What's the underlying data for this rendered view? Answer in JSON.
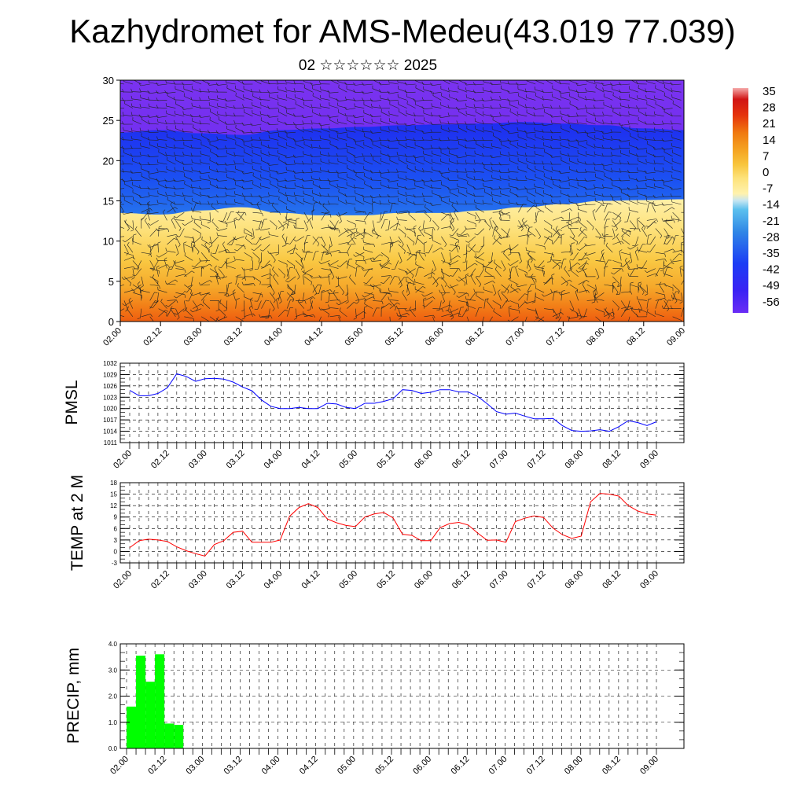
{
  "header": {
    "title": "Kazhydromet for AMS-Medeu(43.019 77.039)",
    "subtitle": "02 ☆☆☆☆☆☆ 2025"
  },
  "colors": {
    "pmsl_line": "#0000ff",
    "temp_line": "#ff0000",
    "precip_bar": "#00ff00",
    "colormap": [
      "#7a2cf2",
      "#3a22f4",
      "#1c3df5",
      "#2f86e6",
      "#5cc0ee",
      "#c7e6f2",
      "#fff2ae",
      "#fde27a",
      "#f8c53c",
      "#f5a623",
      "#f07a10",
      "#e5320c",
      "#d11414",
      "#f5aaaa"
    ]
  },
  "chart_data": [
    {
      "type": "heatmap",
      "name": "cross-section",
      "ylim": [
        0,
        30
      ],
      "yticks": [
        "0",
        "5",
        "10",
        "15",
        "20",
        "25",
        "30"
      ],
      "xticks": [
        "02.00",
        "02.12",
        "03.00",
        "03.12",
        "04.00",
        "04.12",
        "05.00",
        "05.12",
        "06.00",
        "06.12",
        "07.00",
        "07.12",
        "08.00",
        "08.12",
        "09.00"
      ],
      "colorbar_labels": [
        "35",
        "28",
        "21",
        "14",
        "7",
        "0",
        "-7",
        "-14",
        "-21",
        "-28",
        "-35",
        "-42",
        "-49",
        "-56"
      ],
      "colorbar_range": [
        -60,
        38
      ],
      "level_boundary": {
        "x": [
          0,
          0.5,
          1,
          1.5,
          2,
          2.5,
          3,
          3.5,
          4,
          4.5,
          5,
          5.5,
          6,
          6.5,
          7
        ],
        "upper_cold_band": [
          23.5,
          23.8,
          23.4,
          23.2,
          23.8,
          24.0,
          24.2,
          24.4,
          24.5,
          24.6,
          24.8,
          24.6,
          24.4,
          24.0,
          23.8
        ],
        "freezing_level": [
          13.5,
          13.3,
          13.8,
          14.2,
          13.5,
          13.2,
          13.2,
          13.5,
          13.5,
          13.8,
          14.2,
          14.6,
          15.0,
          15.1,
          15.2
        ]
      },
      "wind_barbs": true
    },
    {
      "type": "line",
      "name": "pmsl",
      "ylabel": "PMSL",
      "ylim": [
        1011,
        1032
      ],
      "yticks": [
        "1011",
        "1014",
        "1017",
        "1020",
        "1023",
        "1026",
        "1029",
        "1032"
      ],
      "xticks": [
        "02.00",
        "02.12",
        "03.00",
        "03.12",
        "04.00",
        "04.12",
        "05.00",
        "05.12",
        "06.00",
        "06.12",
        "07.00",
        "07.12",
        "08.00",
        "08.12",
        "09.00"
      ],
      "x": [
        0,
        0.125,
        0.25,
        0.375,
        0.5,
        0.625,
        0.75,
        0.875,
        1,
        1.125,
        1.25,
        1.375,
        1.5,
        1.625,
        1.75,
        1.875,
        2,
        2.125,
        2.25,
        2.375,
        2.5,
        2.625,
        2.75,
        2.875,
        3,
        3.125,
        3.25,
        3.375,
        3.5,
        3.625,
        3.75,
        3.875,
        4,
        4.125,
        4.25,
        4.375,
        4.5,
        4.625,
        4.75,
        4.875,
        5,
        5.125,
        5.25,
        5.375,
        5.5,
        5.625,
        5.75,
        5.875,
        6,
        6.125,
        6.25,
        6.375,
        6.5,
        6.625,
        6.75,
        6.875,
        7
      ],
      "values": [
        1024.8,
        1023.4,
        1023.4,
        1024.0,
        1025.5,
        1029.2,
        1028.5,
        1027.2,
        1027.9,
        1028.0,
        1027.8,
        1027.0,
        1025.7,
        1024.7,
        1022.3,
        1020.6,
        1020.0,
        1020.0,
        1020.3,
        1020.0,
        1020.0,
        1021.4,
        1021.2,
        1020.3,
        1020.0,
        1021.4,
        1021.4,
        1021.9,
        1022.6,
        1025.0,
        1024.8,
        1024.0,
        1024.3,
        1025.0,
        1025.0,
        1024.4,
        1024.4,
        1023.2,
        1021.3,
        1019.2,
        1018.5,
        1018.8,
        1018.0,
        1017.3,
        1017.3,
        1017.4,
        1015.5,
        1014.2,
        1014.0,
        1014.1,
        1014.4,
        1014.0,
        1015.2,
        1016.8,
        1016.3,
        1015.5,
        1016.5
      ]
    },
    {
      "type": "line",
      "name": "temperature",
      "ylabel": "TEMP at 2 M",
      "ylim": [
        -3,
        18
      ],
      "yticks": [
        "-3",
        "0",
        "3",
        "6",
        "9",
        "12",
        "15",
        "18"
      ],
      "xticks": [
        "02.00",
        "02.12",
        "03.00",
        "03.12",
        "04.00",
        "04.12",
        "05.00",
        "05.12",
        "06.00",
        "06.12",
        "07.00",
        "07.12",
        "08.00",
        "08.12",
        "09.00"
      ],
      "x": [
        0,
        0.125,
        0.25,
        0.375,
        0.5,
        0.625,
        0.75,
        0.875,
        1,
        1.125,
        1.25,
        1.375,
        1.5,
        1.625,
        1.75,
        1.875,
        2,
        2.125,
        2.25,
        2.375,
        2.5,
        2.625,
        2.75,
        2.875,
        3,
        3.125,
        3.25,
        3.375,
        3.5,
        3.625,
        3.75,
        3.875,
        4,
        4.125,
        4.25,
        4.375,
        4.5,
        4.625,
        4.75,
        4.875,
        5,
        5.125,
        5.25,
        5.375,
        5.5,
        5.625,
        5.75,
        5.875,
        6,
        6.125,
        6.25,
        6.375,
        6.5,
        6.625,
        6.75,
        6.875,
        7
      ],
      "values": [
        1.0,
        2.8,
        3.2,
        3.0,
        2.6,
        1.2,
        0.2,
        -0.6,
        -1.2,
        1.8,
        2.8,
        5.0,
        5.3,
        2.4,
        2.4,
        2.4,
        3.0,
        9.2,
        11.5,
        12.5,
        11.5,
        8.5,
        7.5,
        6.8,
        6.5,
        9.0,
        9.8,
        10.2,
        8.8,
        4.5,
        4.2,
        2.8,
        2.8,
        6.2,
        7.3,
        7.6,
        6.9,
        4.8,
        2.9,
        3.0,
        2.4,
        7.8,
        8.7,
        9.3,
        8.9,
        6.1,
        4.4,
        3.4,
        4.0,
        13.0,
        15.2,
        15.0,
        14.5,
        12.0,
        10.6,
        9.8,
        9.5
      ]
    },
    {
      "type": "bar",
      "name": "precipitation",
      "ylabel": "PRECIP, mm",
      "ylim": [
        0,
        4.0
      ],
      "yticks": [
        "0.0",
        "1.0",
        "2.0",
        "3.0",
        "4.0"
      ],
      "xticks": [
        "02.00",
        "02.12",
        "03.00",
        "03.12",
        "04.00",
        "04.12",
        "05.00",
        "05.12",
        "06.00",
        "06.12",
        "07.00",
        "07.12",
        "08.00",
        "08.12",
        "09.00"
      ],
      "bar_x": [
        0.0625,
        0.1875,
        0.3125,
        0.4375,
        0.5625,
        0.6875,
        0.8125
      ],
      "values": [
        1.6,
        3.55,
        2.55,
        3.6,
        0.95,
        0.9,
        0
      ]
    }
  ]
}
